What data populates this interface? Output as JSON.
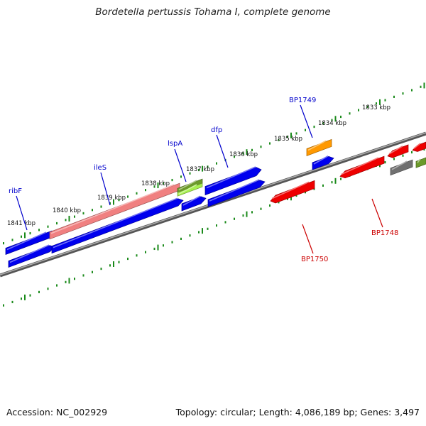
{
  "title": "Bordetella pertussis Tohama I, complete genome",
  "footer": {
    "accession": "Accession: NC_002929",
    "summary": "Topology: circular; Length: 4,086,189 bp; Genes: 3,497"
  },
  "colors": {
    "tick": "#1a8a1a",
    "backbone": "#808080",
    "forward_gene": "#0000ee",
    "reverse_gene": "#ee0000",
    "forward_label": "#0000cc",
    "reverse_label": "#cc0000",
    "pseudo_gene": "#f08080",
    "lspA_top": "#6b9a2a",
    "lspA_bottom": "#a8f050",
    "orange_gene": "#ff9900",
    "gray_gene": "#707070",
    "olive_gene": "#6b9a2a"
  },
  "scale_labels": [
    "1841 kbp",
    "1840 kbp",
    "1839 kbp",
    "1838 kbp",
    "1837 kbp",
    "1836 kbp",
    "1835 kbp",
    "1834 kbp",
    "1833 kbp"
  ],
  "gene_labels": {
    "forward": [
      "ribF",
      "ileS",
      "lspA",
      "dfp",
      "BP1749"
    ],
    "reverse": [
      "BP1750",
      "BP1748"
    ]
  }
}
